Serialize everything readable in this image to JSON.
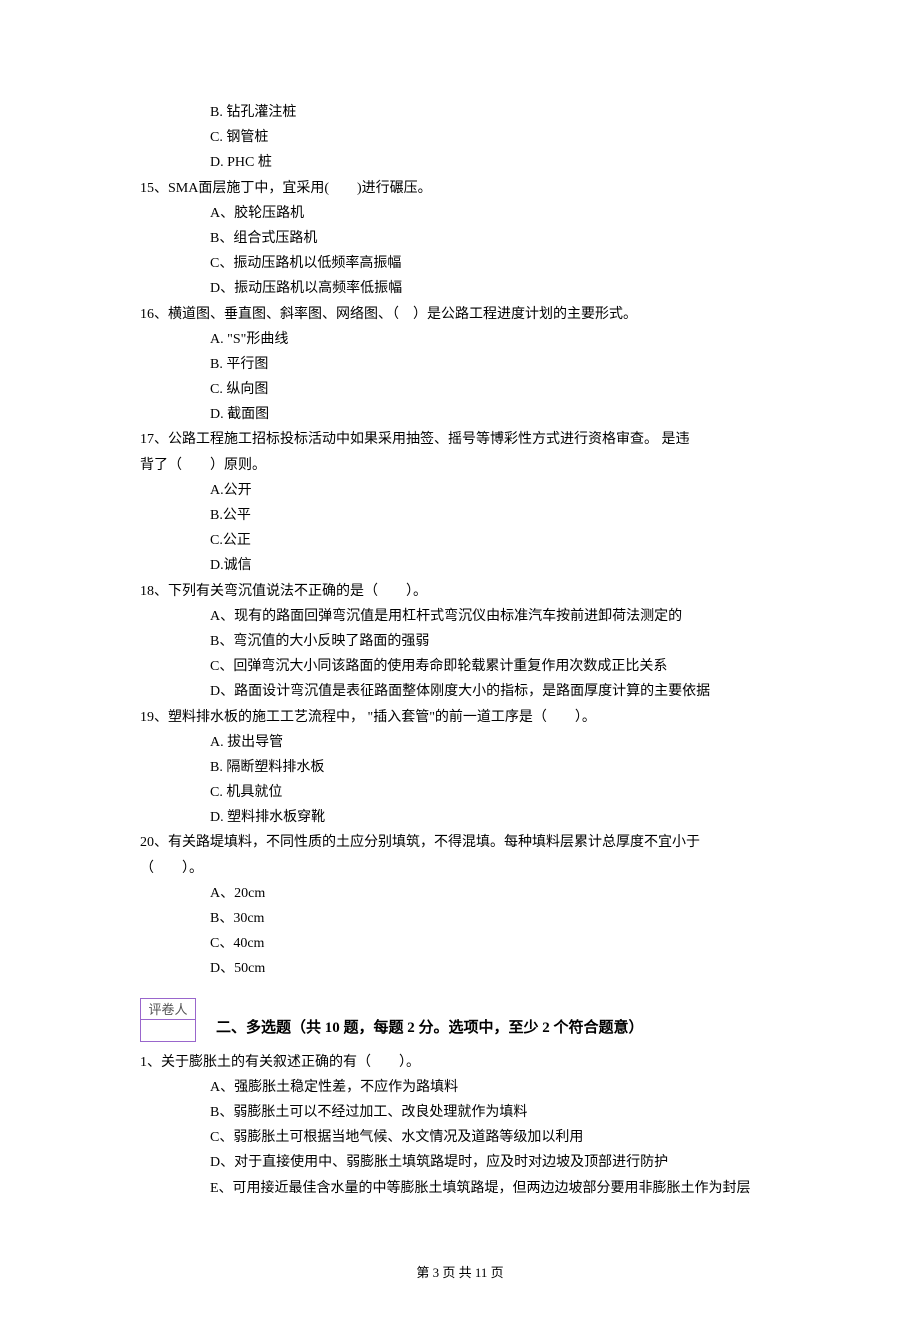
{
  "q14": {
    "optB": "B.  钻孔灌注桩",
    "optC": "C.  钢管桩",
    "optD": "D.  PHC 桩"
  },
  "q15": {
    "stem": "15、SMA面层施丁中，宜采用(　　)进行碾压。",
    "optA": "A、胶轮压路机",
    "optB": "B、组合式压路机",
    "optC": "C、振动压路机以低频率高振幅",
    "optD": "D、振动压路机以高频率低振幅"
  },
  "q16": {
    "stem": "16、横道图、垂直图、斜率图、网络图、（　）是公路工程进度计划的主要形式。",
    "optA": "A.  \"S\"形曲线",
    "optB": "B.  平行图",
    "optC": "C.  纵向图",
    "optD": "D.  截面图"
  },
  "q17": {
    "stem": "17、公路工程施工招标投标活动中如果采用抽签、摇号等博彩性方式进行资格审查。  是违",
    "stem2": "背了（　　）原则。",
    "optA": "A.公开",
    "optB": "B.公平",
    "optC": "C.公正",
    "optD": "D.诚信"
  },
  "q18": {
    "stem": "18、下列有关弯沉值说法不正确的是（　　）。",
    "optA": "A、现有的路面回弹弯沉值是用杠杆式弯沉仪由标准汽车按前进卸荷法测定的",
    "optB": "B、弯沉值的大小反映了路面的强弱",
    "optC": "C、回弹弯沉大小同该路面的使用寿命即轮载累计重复作用次数成正比关系",
    "optD": "D、路面设计弯沉值是表征路面整体刚度大小的指标，是路面厚度计算的主要依据"
  },
  "q19": {
    "stem": "19、塑料排水板的施工工艺流程中， \"插入套管\"的前一道工序是（　　）。",
    "optA": "A.  拔出导管",
    "optB": "B.  隔断塑料排水板",
    "optC": "C.  机具就位",
    "optD": "D.  塑料排水板穿靴"
  },
  "q20": {
    "stem": "20、有关路堤填料，不同性质的土应分别填筑，不得混填。每种填料层累计总厚度不宜小于",
    "stem2": "（　　）。",
    "optA": "A、20cm",
    "optB": "B、30cm",
    "optC": "C、40cm",
    "optD": "D、50cm"
  },
  "grader": {
    "label": "评卷人"
  },
  "section2": {
    "title": "二、多选题（共 10 题，每题 2 分。选项中，至少 2 个符合题意）"
  },
  "mq1": {
    "stem": "1、关于膨胀土的有关叙述正确的有（　　）。",
    "optA": "A、强膨胀土稳定性差，不应作为路填料",
    "optB": "B、弱膨胀土可以不经过加工、改良处理就作为填料",
    "optC": "C、弱膨胀土可根据当地气候、水文情况及道路等级加以利用",
    "optD": "D、对于直接使用中、弱膨胀土填筑路堤时，应及时对边坡及顶部进行防护",
    "optE": "E、可用接近最佳含水量的中等膨胀土填筑路堤，但两边边坡部分要用非膨胀土作为封层"
  },
  "footer": {
    "text": "第 3 页 共 11 页"
  }
}
